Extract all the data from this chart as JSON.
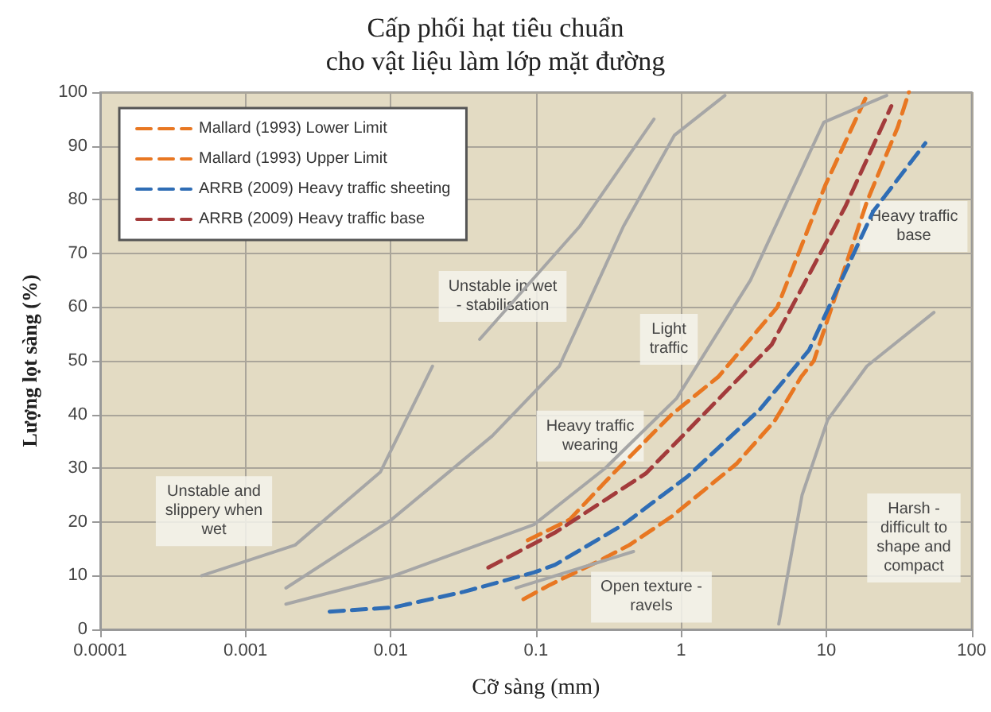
{
  "chart_data": {
    "type": "line",
    "title": "Cấp phối hạt tiêu chuẩn\ncho vật liệu làm lớp mặt đường",
    "xlabel": "Cỡ sàng (mm)",
    "ylabel": "Lượng lọt sàng (%)",
    "log": "x",
    "xlim": [
      0.0001,
      100
    ],
    "xticks": [
      0.0001,
      0.001,
      0.01,
      0.1,
      1,
      10,
      100
    ],
    "ylim": [
      0,
      100
    ],
    "yticks": [
      0,
      10,
      20,
      30,
      40,
      50,
      60,
      70,
      80,
      90,
      100
    ],
    "grid": true,
    "legend": "top left",
    "series": [
      {
        "name": "Mallard (1993) Lower Limit",
        "color": "#e87722",
        "line_style": "dashed",
        "x": [
          0.082,
          0.125,
          0.27,
          0.44,
          0.86,
          2.4,
          4.4,
          6.7,
          8.2,
          19,
          31,
          37
        ],
        "values": [
          5.6,
          8.3,
          12.7,
          15.7,
          21,
          30.8,
          38.8,
          47,
          50,
          79.6,
          93.5,
          100
        ]
      },
      {
        "name": "Mallard (1993) Upper Limit",
        "color": "#e87722",
        "line_style": "dashed",
        "x": [
          0.088,
          0.17,
          0.34,
          0.86,
          1.8,
          4.6,
          9.8,
          19
        ],
        "values": [
          16.6,
          20.4,
          29,
          40,
          47,
          60,
          82.6,
          99.4
        ]
      },
      {
        "name": "ARRB (2009) Heavy traffic sheeting",
        "color": "#2f6db5",
        "line_style": "dashed",
        "x": [
          0.0038,
          0.0105,
          0.032,
          0.097,
          0.135,
          0.4,
          1.1,
          3.5,
          7.6,
          21,
          48
        ],
        "values": [
          3.3,
          4.1,
          7,
          10.6,
          12,
          19.5,
          28.4,
          41,
          52,
          77.8,
          90.5
        ]
      },
      {
        "name": "ARRB (2009) Heavy traffic base",
        "color": "#a33b3b",
        "line_style": "dashed",
        "x": [
          0.047,
          0.135,
          0.57,
          4.2,
          13.5,
          28
        ],
        "values": [
          11.5,
          18,
          29,
          53,
          78.7,
          97.4
        ]
      },
      {
        "color": "#a6a6a6",
        "line_style": "solid",
        "x": [
          0.0005,
          0.0022,
          0.0085,
          0.0194
        ],
        "values": [
          10,
          15.7,
          29.3,
          49
        ]
      },
      {
        "color": "#a6a6a6",
        "line_style": "solid",
        "x": [
          0.0019,
          0.0101,
          0.05,
          0.145,
          0.4,
          0.9,
          2
        ],
        "values": [
          7.7,
          20.4,
          36,
          49,
          75,
          92,
          99.4
        ]
      },
      {
        "color": "#a6a6a6",
        "line_style": "solid",
        "x": [
          0.041,
          0.2,
          0.65
        ],
        "values": [
          54,
          75,
          95
        ]
      },
      {
        "color": "#a6a6a6",
        "line_style": "solid",
        "x": [
          0.0019,
          0.0101,
          0.097,
          0.3,
          0.93,
          3,
          9.6,
          26
        ],
        "values": [
          4.7,
          9.8,
          19.5,
          30,
          43,
          65,
          94.4,
          99.4
        ]
      },
      {
        "color": "#a6a6a6",
        "line_style": "solid",
        "x": [
          0.073,
          0.47
        ],
        "values": [
          7.7,
          14.5
        ]
      },
      {
        "color": "#a6a6a6",
        "line_style": "solid",
        "x": [
          4.7,
          6.8,
          10.2,
          19,
          55
        ],
        "values": [
          1,
          25,
          39,
          49,
          59
        ]
      }
    ],
    "annotations": [
      "Unstable and\nslippery when\nwet",
      "Unstable in wet\n- stabilisation",
      "Light\ntraffic",
      "Heavy traffic\nbase",
      "Heavy traffic\nwearing",
      "Open texture -\nravels",
      "Harsh -\ndifficult to\nshape and\ncompact"
    ]
  }
}
